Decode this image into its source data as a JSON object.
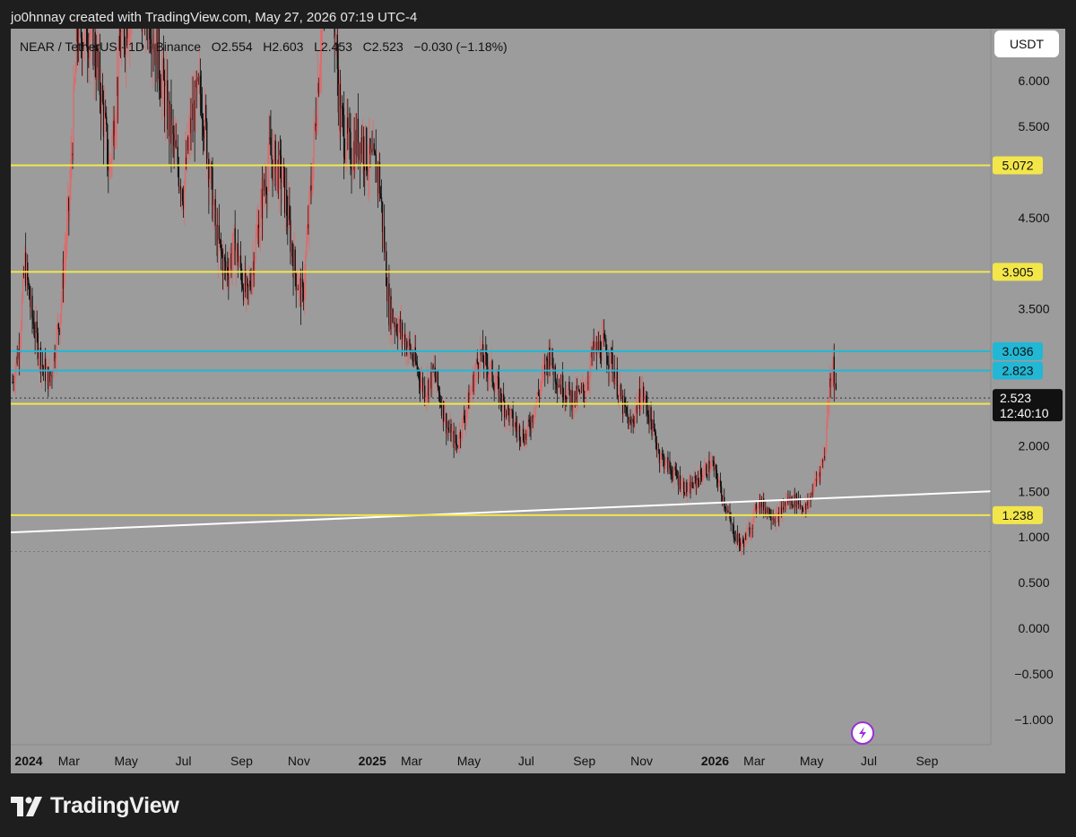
{
  "caption": "jo0hnnay created with TradingView.com, May 27, 2026 07:19 UTC-4",
  "symbol_line": "NEAR / TetherUS · 1D · Binance   O2.554   H2.603   L2.453   C2.523   −0.030 (−1.18%)",
  "currency_button": "USDT",
  "brand": "TradingView",
  "colors": {
    "background": "#1e1e1e",
    "plot": "#9c9c9c",
    "yellow_level": "#f2e64a",
    "cyan_level": "#22b7d4",
    "trendline": "#ffffff",
    "candle_up": "#e06a6a",
    "candle_down": "#111111",
    "last_price_tag": "#111111"
  },
  "chart_data": {
    "type": "candlestick",
    "title": "NEAR / TetherUS · 1D · Binance",
    "ohlc_latest": {
      "open": 2.554,
      "high": 2.603,
      "low": 2.453,
      "close": 2.523,
      "change": -0.03,
      "change_pct": -1.18
    },
    "y_axis": {
      "range": [
        -1.2,
        6.5
      ],
      "ticks": [
        "6.000",
        "5.500",
        "4.500",
        "3.500",
        "2.000",
        "1.500",
        "1.000",
        "0.500",
        "0.000",
        "−0.500",
        "−1.000"
      ]
    },
    "x_axis": {
      "range": [
        "2024-01-01",
        "2026-10-15"
      ],
      "ticks": [
        {
          "label": "2024",
          "date": "2024-01-01",
          "year": true
        },
        {
          "label": "Mar",
          "date": "2024-03-01"
        },
        {
          "label": "May",
          "date": "2024-05-01"
        },
        {
          "label": "Jul",
          "date": "2024-07-01"
        },
        {
          "label": "Sep",
          "date": "2024-09-01"
        },
        {
          "label": "Nov",
          "date": "2024-11-01"
        },
        {
          "label": "2025",
          "date": "2025-01-01",
          "year": true
        },
        {
          "label": "Mar",
          "date": "2025-03-01"
        },
        {
          "label": "May",
          "date": "2025-05-01"
        },
        {
          "label": "Jul",
          "date": "2025-07-01"
        },
        {
          "label": "Sep",
          "date": "2025-09-01"
        },
        {
          "label": "Nov",
          "date": "2025-11-01"
        },
        {
          "label": "2026",
          "date": "2026-01-01",
          "year": true
        },
        {
          "label": "Mar",
          "date": "2026-03-01"
        },
        {
          "label": "May",
          "date": "2026-05-01"
        },
        {
          "label": "Jul",
          "date": "2026-07-01"
        },
        {
          "label": "Sep",
          "date": "2026-09-01"
        }
      ]
    },
    "horizontal_levels": [
      {
        "value": 5.072,
        "label": "5.072",
        "color": "yellow"
      },
      {
        "value": 3.905,
        "label": "3.905",
        "color": "yellow"
      },
      {
        "value": 3.036,
        "label": "3.036",
        "color": "cyan"
      },
      {
        "value": 2.823,
        "label": "2.823",
        "color": "cyan"
      },
      {
        "value": 2.459,
        "label": "2.459",
        "color": "yellow"
      },
      {
        "value": 1.238,
        "label": "1.238",
        "color": "yellow"
      }
    ],
    "last_price": {
      "value": 2.523,
      "label": "2.523",
      "countdown": "12:40:10"
    },
    "low_marker_value": 0.84,
    "trendline": [
      {
        "date": "2024-01-01",
        "value": 1.05
      },
      {
        "date": "2026-10-15",
        "value": 1.5
      }
    ],
    "price_path": [
      {
        "date": "2024-01-01",
        "value": 2.7
      },
      {
        "date": "2024-01-08",
        "value": 3.1
      },
      {
        "date": "2024-01-14",
        "value": 4.0
      },
      {
        "date": "2024-01-22",
        "value": 3.4
      },
      {
        "date": "2024-02-01",
        "value": 2.9
      },
      {
        "date": "2024-02-10",
        "value": 2.7
      },
      {
        "date": "2024-02-20",
        "value": 3.4
      },
      {
        "date": "2024-03-01",
        "value": 4.6
      },
      {
        "date": "2024-03-10",
        "value": 6.5
      },
      {
        "date": "2024-03-25",
        "value": 6.6
      },
      {
        "date": "2024-04-05",
        "value": 5.8
      },
      {
        "date": "2024-04-13",
        "value": 5.0
      },
      {
        "date": "2024-04-25",
        "value": 6.4
      },
      {
        "date": "2024-05-10",
        "value": 7.0
      },
      {
        "date": "2024-05-25",
        "value": 6.8
      },
      {
        "date": "2024-06-05",
        "value": 6.2
      },
      {
        "date": "2024-06-20",
        "value": 5.3
      },
      {
        "date": "2024-07-01",
        "value": 4.8
      },
      {
        "date": "2024-07-10",
        "value": 5.6
      },
      {
        "date": "2024-07-20",
        "value": 5.9
      },
      {
        "date": "2024-08-05",
        "value": 4.3
      },
      {
        "date": "2024-08-15",
        "value": 3.9
      },
      {
        "date": "2024-08-25",
        "value": 4.2
      },
      {
        "date": "2024-09-07",
        "value": 3.6
      },
      {
        "date": "2024-09-20",
        "value": 4.5
      },
      {
        "date": "2024-10-01",
        "value": 5.2
      },
      {
        "date": "2024-10-15",
        "value": 4.9
      },
      {
        "date": "2024-10-28",
        "value": 3.9
      },
      {
        "date": "2024-11-05",
        "value": 3.6
      },
      {
        "date": "2024-11-15",
        "value": 5.0
      },
      {
        "date": "2024-11-25",
        "value": 6.6
      },
      {
        "date": "2024-12-05",
        "value": 7.4
      },
      {
        "date": "2024-12-15",
        "value": 5.6
      },
      {
        "date": "2024-12-25",
        "value": 5.2
      },
      {
        "date": "2025-01-05",
        "value": 5.4
      },
      {
        "date": "2025-01-15",
        "value": 5.1
      },
      {
        "date": "2025-01-25",
        "value": 5.0
      },
      {
        "date": "2025-02-05",
        "value": 3.5
      },
      {
        "date": "2025-02-15",
        "value": 3.3
      },
      {
        "date": "2025-02-25",
        "value": 3.1
      },
      {
        "date": "2025-03-05",
        "value": 2.9
      },
      {
        "date": "2025-03-15",
        "value": 2.6
      },
      {
        "date": "2025-03-25",
        "value": 2.8
      },
      {
        "date": "2025-04-08",
        "value": 2.2
      },
      {
        "date": "2025-04-18",
        "value": 2.0
      },
      {
        "date": "2025-05-01",
        "value": 2.5
      },
      {
        "date": "2025-05-12",
        "value": 3.0
      },
      {
        "date": "2025-05-25",
        "value": 2.8
      },
      {
        "date": "2025-06-05",
        "value": 2.5
      },
      {
        "date": "2025-06-20",
        "value": 2.2
      },
      {
        "date": "2025-07-01",
        "value": 2.1
      },
      {
        "date": "2025-07-15",
        "value": 2.6
      },
      {
        "date": "2025-07-25",
        "value": 3.0
      },
      {
        "date": "2025-08-05",
        "value": 2.7
      },
      {
        "date": "2025-08-20",
        "value": 2.5
      },
      {
        "date": "2025-09-01",
        "value": 2.6
      },
      {
        "date": "2025-09-10",
        "value": 3.0
      },
      {
        "date": "2025-09-20",
        "value": 3.1
      },
      {
        "date": "2025-10-01",
        "value": 2.9
      },
      {
        "date": "2025-10-10",
        "value": 2.5
      },
      {
        "date": "2025-10-20",
        "value": 2.2
      },
      {
        "date": "2025-11-01",
        "value": 2.6
      },
      {
        "date": "2025-11-10",
        "value": 2.3
      },
      {
        "date": "2025-11-20",
        "value": 1.9
      },
      {
        "date": "2025-12-05",
        "value": 1.7
      },
      {
        "date": "2025-12-20",
        "value": 1.5
      },
      {
        "date": "2026-01-05",
        "value": 1.7
      },
      {
        "date": "2026-01-15",
        "value": 1.8
      },
      {
        "date": "2026-01-25",
        "value": 1.5
      },
      {
        "date": "2026-02-05",
        "value": 1.1
      },
      {
        "date": "2026-02-15",
        "value": 0.9
      },
      {
        "date": "2026-02-25",
        "value": 1.1
      },
      {
        "date": "2026-03-05",
        "value": 1.4
      },
      {
        "date": "2026-03-15",
        "value": 1.3
      },
      {
        "date": "2026-03-25",
        "value": 1.2
      },
      {
        "date": "2026-04-05",
        "value": 1.4
      },
      {
        "date": "2026-04-15",
        "value": 1.4
      },
      {
        "date": "2026-04-25",
        "value": 1.3
      },
      {
        "date": "2026-05-05",
        "value": 1.6
      },
      {
        "date": "2026-05-15",
        "value": 1.9
      },
      {
        "date": "2026-05-20",
        "value": 2.7
      },
      {
        "date": "2026-05-24",
        "value": 2.9
      },
      {
        "date": "2026-05-27",
        "value": 2.523
      }
    ]
  }
}
